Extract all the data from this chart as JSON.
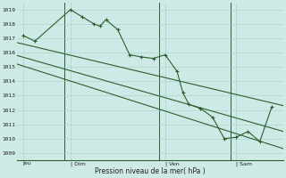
{
  "background_color": "#ceeae6",
  "grid_color": "#a8cec8",
  "line_color": "#2d5e2d",
  "ylabel_values": [
    1009,
    1010,
    1011,
    1012,
    1013,
    1014,
    1015,
    1016,
    1017,
    1018,
    1019
  ],
  "xlabel": "Pression niveau de la mer( hPa )",
  "x_tick_labels": [
    "Jeu",
    "| Dim",
    "| Ven",
    "| Sam"
  ],
  "x_tick_positions": [
    0.5,
    4.5,
    12.5,
    18.5
  ],
  "series1_x": [
    0.5,
    1.5,
    4.5,
    5.5,
    6.5,
    7.0,
    7.5,
    8.5,
    9.5,
    10.5,
    11.5,
    12.5,
    13.5,
    14.0,
    14.5,
    15.5,
    16.5,
    17.5,
    18.5,
    19.5,
    20.5,
    21.5
  ],
  "series1_y": [
    1017.2,
    1016.8,
    1019.0,
    1018.5,
    1018.0,
    1017.85,
    1018.3,
    1017.6,
    1015.85,
    1015.7,
    1015.6,
    1015.85,
    1014.7,
    1013.2,
    1012.4,
    1012.1,
    1011.5,
    1010.0,
    1010.1,
    1010.5,
    1009.8,
    1012.2
  ],
  "series2_x": [
    0.0,
    22.5
  ],
  "series2_y": [
    1016.7,
    1012.3
  ],
  "series3_x": [
    0.0,
    22.5
  ],
  "series3_y": [
    1015.8,
    1010.5
  ],
  "series4_x": [
    0.0,
    22.5
  ],
  "series4_y": [
    1015.2,
    1009.3
  ],
  "vlines_x": [
    4.0,
    12.0,
    18.0
  ],
  "xlim": [
    0.0,
    22.5
  ],
  "ylim": [
    1008.5,
    1019.5
  ],
  "figsize": [
    3.2,
    2.0
  ],
  "dpi": 100
}
